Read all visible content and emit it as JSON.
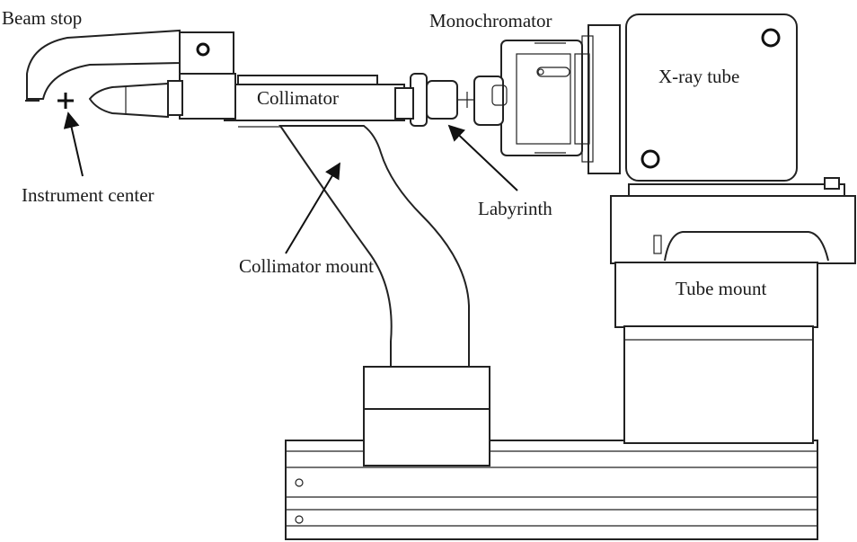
{
  "labels": {
    "beam_stop": "Beam stop",
    "monochromator": "Monochromator",
    "xray_tube": "X-ray tube",
    "collimator": "Collimator",
    "instrument_center": "Instrument center",
    "labyrinth": "Labyrinth",
    "collimator_mount": "Collimator mount",
    "tube_mount": "Tube mount"
  },
  "colors": {
    "stroke": "#222222",
    "background": "#ffffff"
  }
}
